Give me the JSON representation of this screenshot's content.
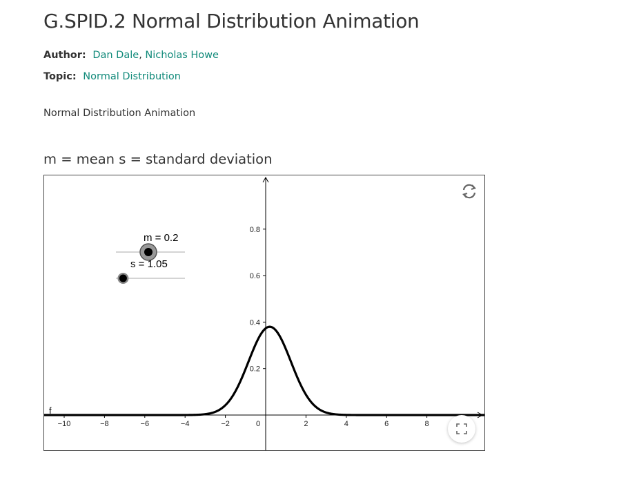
{
  "page": {
    "title": "G.SPID.2 Normal Distribution Animation",
    "author_label": "Author:",
    "authors": [
      "Dan Dale",
      "Nicholas Howe"
    ],
    "author_separator": ",",
    "topic_label": "Topic:",
    "topic": "Normal Distribution",
    "description": "Normal Distribution Animation",
    "subtitle": "m = mean s = standard deviation"
  },
  "applet": {
    "sliders": [
      {
        "name": "m",
        "label": "m = 0.2",
        "value": 0.2
      },
      {
        "name": "s",
        "label": "s = 1.05",
        "value": 1.05
      }
    ],
    "function_label": "f",
    "icons": {
      "reset": "reset-icon",
      "fullscreen": "fullscreen-icon"
    }
  },
  "chart_data": {
    "type": "line",
    "function": "normal pdf",
    "mean": 0.2,
    "sd": 1.05,
    "xlim": [
      -11,
      11
    ],
    "ylim": [
      -0.15,
      1.0
    ],
    "x_ticks": [
      -10,
      -8,
      -6,
      -4,
      -2,
      0,
      2,
      4,
      6,
      8
    ],
    "x_tick_labels": [
      "−10",
      "−8",
      "−6",
      "−4",
      "−2",
      "0",
      "2",
      "4",
      "6",
      "8"
    ],
    "y_ticks": [
      0.2,
      0.4,
      0.6,
      0.8
    ],
    "y_tick_labels": [
      "0.2",
      "0.4",
      "0.6",
      "0.8"
    ],
    "grid": false,
    "curve_color": "#000000"
  }
}
